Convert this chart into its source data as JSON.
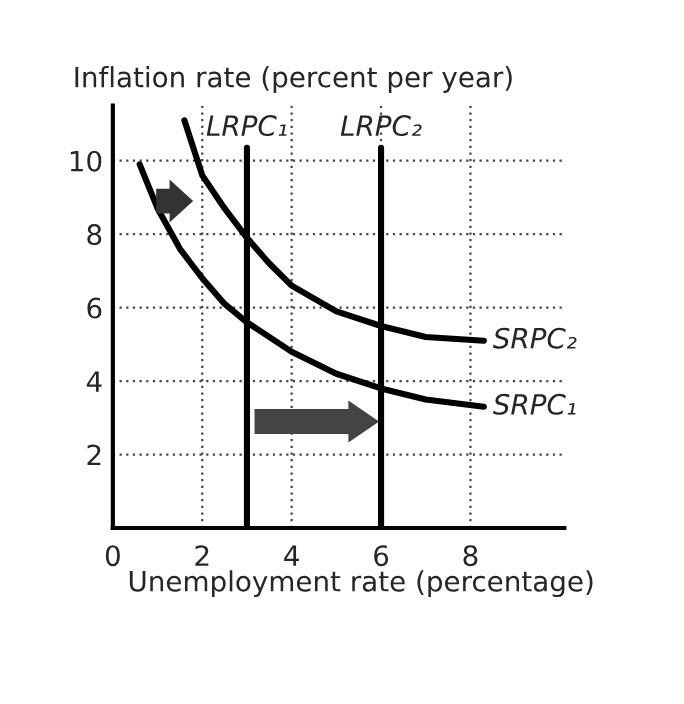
{
  "chart_data": {
    "type": "line",
    "ylabel": "Inflation rate (percent per year)",
    "xlabel": "Unemployment rate (percentage)",
    "series": [
      {
        "name": "SRPC₁",
        "color": "#000000",
        "x": [
          0.6,
          1,
          1.5,
          2,
          2.5,
          3,
          4,
          5,
          6,
          7,
          8.3
        ],
        "values": [
          9.9,
          8.7,
          7.6,
          6.8,
          6.1,
          5.6,
          4.8,
          4.2,
          3.8,
          3.5,
          3.3
        ]
      },
      {
        "name": "SRPC₂",
        "color": "#000000",
        "x": [
          1.6,
          2,
          2.5,
          3,
          3.5,
          4,
          5,
          6,
          7,
          8.3
        ],
        "values": [
          11.1,
          9.6,
          8.7,
          7.9,
          7.2,
          6.6,
          5.9,
          5.5,
          5.2,
          5.1
        ]
      }
    ],
    "ref_lines": [
      {
        "axis": "x",
        "value": 3,
        "label": "LRPC₁",
        "color": "#000000"
      },
      {
        "axis": "x",
        "value": 6,
        "label": "LRPC₂",
        "color": "#000000"
      }
    ],
    "xlim": [
      0,
      10.1
    ],
    "ylim": [
      0,
      11.5
    ],
    "xticks": [
      0,
      2,
      4,
      6,
      8
    ],
    "yticks": [
      2,
      4,
      6,
      8,
      10
    ],
    "grid": true,
    "marker": "none",
    "line_style": "solid",
    "legend": false
  }
}
